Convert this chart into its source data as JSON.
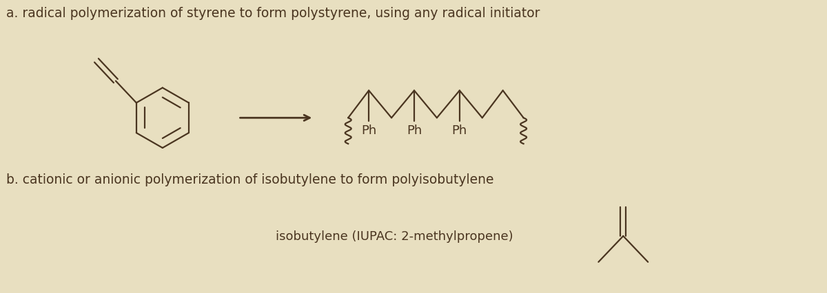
{
  "background_color": "#e8dfc0",
  "text_color": "#4a3520",
  "title_a": "a. radical polymerization of styrene to form polystyrene, using any radical initiator",
  "title_b": "b. cationic or anionic polymerization of isobutylene to form polyisobutylene",
  "label_isobutylene": "isobutylene (IUPAC: 2-methylpropene)",
  "font_size_title": 13.5,
  "font_size_label": 13,
  "fig_width": 12.0,
  "fig_height": 4.27
}
